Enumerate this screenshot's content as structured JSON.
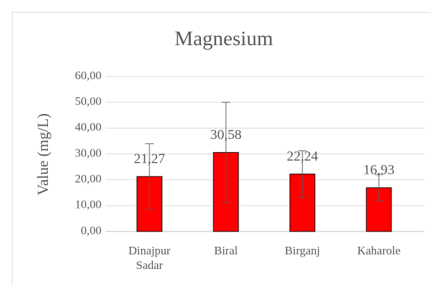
{
  "chart_data": {
    "type": "bar",
    "title": "Magnesium",
    "y_label": "Value (mg/L)",
    "categories": [
      "Dinajpur Sadar",
      "Biral",
      "Birganj",
      "Kaharole"
    ],
    "values": [
      21.27,
      30.58,
      22.24,
      16.93
    ],
    "value_labels": [
      "21,27",
      "30,58",
      "22,24",
      "16,93"
    ],
    "errors": [
      12.7,
      19.4,
      9.0,
      5.1
    ],
    "color": "#ff0000",
    "ylim": [
      0,
      60
    ],
    "yticks": [
      {
        "value": 0,
        "label": "0,00"
      },
      {
        "value": 10,
        "label": "10,00"
      },
      {
        "value": 20,
        "label": "20,00"
      },
      {
        "value": 30,
        "label": "30,00"
      },
      {
        "value": 40,
        "label": "40,00"
      },
      {
        "value": 50,
        "label": "50,00"
      },
      {
        "value": 60,
        "label": "60,00"
      }
    ],
    "grid": true
  }
}
